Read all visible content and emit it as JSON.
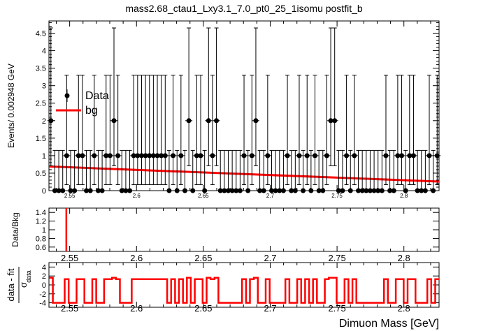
{
  "title": "mass2.68_ctau1_Lxy3.1_7.0_pt0_25_1isomu   postfit_b",
  "colors": {
    "fit": "#ff0000",
    "data": "#000000",
    "frame": "#000000",
    "background": "#ffffff"
  },
  "legend": {
    "placement": "upper-left",
    "entries": [
      {
        "label": "Data",
        "marker": "filled-circle-with-error-bar"
      },
      {
        "label": "bg",
        "marker": "red-line"
      }
    ]
  },
  "chart_data": [
    {
      "panel": "main",
      "type": "scatter",
      "ylabel": "Events/ 0.002948 GeV",
      "xlim": [
        2.5345,
        2.8263
      ],
      "ylim": [
        0,
        4.85
      ],
      "y_ticks": [
        0,
        0.5,
        1,
        1.5,
        2,
        2.5,
        3,
        3.5,
        4,
        4.5
      ],
      "y_tick_labels": [
        "0",
        "0.5",
        "1",
        "1.5",
        "2",
        "2.5",
        "3",
        "3.5",
        "4",
        "4.5"
      ],
      "x_ticks": [
        2.55,
        2.6,
        2.65,
        2.7,
        2.75,
        2.8
      ],
      "x_tick_labels": [
        "2.55",
        "2.6",
        "2.65",
        "2.7",
        "2.75",
        "2.8"
      ],
      "series": [
        {
          "name": "Data",
          "kind": "points-with-errors",
          "bin_width": 0.002948,
          "x_start": 2.53597,
          "values": [
            2,
            0,
            0,
            0,
            1,
            0,
            0,
            1,
            1,
            0,
            0,
            1,
            0,
            0,
            1,
            1,
            2,
            1,
            0,
            0,
            0,
            1,
            1,
            1,
            1,
            1,
            1,
            1,
            1,
            1,
            0,
            1,
            0,
            1,
            0,
            2,
            0,
            1,
            1,
            0,
            2,
            1,
            2,
            0,
            0,
            0,
            0,
            0,
            0,
            1,
            0,
            1,
            2,
            0,
            0,
            1,
            0,
            0,
            0,
            0,
            1,
            0,
            0,
            1,
            0,
            1,
            0,
            1,
            0,
            0,
            1,
            2,
            2,
            0,
            0,
            1,
            0,
            1,
            0,
            0,
            0,
            0,
            0,
            0,
            0,
            1,
            0,
            0,
            1,
            1,
            0,
            1,
            1,
            0,
            0,
            0,
            1,
            0,
            1,
            1
          ]
        },
        {
          "name": "bg",
          "kind": "line",
          "x": [
            2.5345,
            2.8263
          ],
          "y": [
            0.69,
            0.26
          ]
        }
      ]
    },
    {
      "panel": "ratio",
      "type": "line",
      "ylabel": "Data/Bkg",
      "ylim": [
        0.5,
        1.5
      ],
      "y_ticks": [
        0.6,
        0.8,
        1,
        1.2,
        1.4
      ],
      "y_tick_labels": [
        "0.6",
        "0.8",
        "1",
        "1.2",
        "1.4"
      ],
      "x_tick_labels": [
        "2.55",
        "2.6",
        "2.65",
        "2.7",
        "2.75",
        "2.8"
      ],
      "series": [
        {
          "kind": "vertical-line",
          "x": 2.5475
        }
      ]
    },
    {
      "panel": "pull",
      "type": "line",
      "ylabel_num": "data - fit",
      "ylabel_den": "σ",
      "ylabel_den_sub": "data",
      "xlabel": "Dimuon Mass [GeV]",
      "ylim": [
        -5,
        5
      ],
      "y_ticks": [
        -4,
        -2,
        0,
        2,
        4
      ],
      "y_tick_labels": [
        "-4",
        "-2",
        "0",
        "2",
        "4"
      ],
      "x_tick_labels": [
        "2.55",
        "2.6",
        "2.65",
        "2.7",
        "2.75",
        "2.8"
      ],
      "series": [
        {
          "kind": "step",
          "note": "pulls per bin, -4 for empty bins, ~+1.3 for filled bins"
        }
      ]
    }
  ]
}
